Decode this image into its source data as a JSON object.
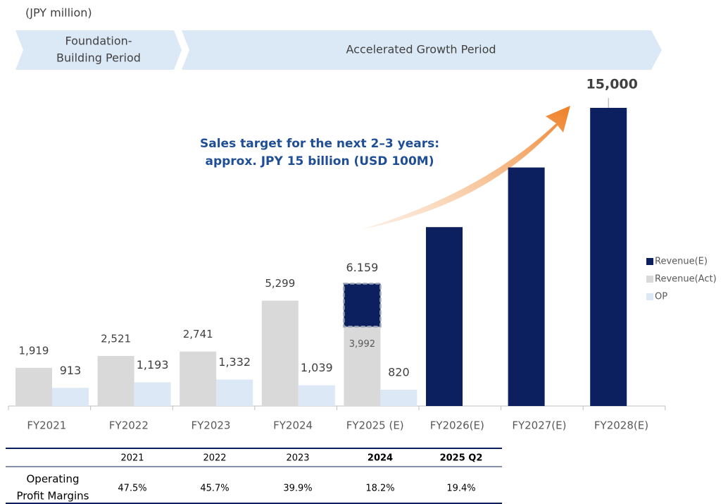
{
  "chart_data": {
    "type": "bar",
    "unit_label": "(JPY million)",
    "phases": [
      {
        "lines": [
          "Foundation-",
          "Building Period"
        ]
      },
      {
        "lines": [
          "Accelerated Growth Period"
        ]
      }
    ],
    "annotation": [
      "Sales target for the next 2–3 years:",
      "approx. JPY 15 billion (USD 100M)"
    ],
    "categories": [
      "FY2021",
      "FY2022",
      "FY2023",
      "FY2024",
      "FY2025 (E)",
      "FY2026(E)",
      "FY2027(E)",
      "FY2028(E)"
    ],
    "ylim": [
      0,
      15000
    ],
    "series": [
      {
        "name": "Revenue(E)",
        "color": "#0c1f5e",
        "values": [
          null,
          null,
          null,
          null,
          2167,
          9000,
          12000,
          15000
        ],
        "value_labels": [
          null,
          null,
          null,
          null,
          null,
          null,
          null,
          "15,000"
        ]
      },
      {
        "name": "Revenue(Act)",
        "color": "#d9d9d9",
        "values": [
          1919,
          2521,
          2741,
          5299,
          3992,
          null,
          null,
          null
        ],
        "value_labels": [
          "1,919",
          "2,521",
          "2,741",
          "5,299",
          "3,992",
          null,
          null,
          null
        ]
      },
      {
        "name": "OP",
        "color": "#dce8f5",
        "values": [
          913,
          1193,
          1332,
          1039,
          820,
          null,
          null,
          null
        ],
        "value_labels": [
          "913",
          "1,193",
          "1,332",
          "1,039",
          "820",
          null,
          null,
          null
        ]
      }
    ],
    "total_label": {
      "index": 4,
      "value": 6159,
      "label": "6.159"
    }
  },
  "table": {
    "columns": [
      "2021",
      "2022",
      "2023",
      "2024",
      "2025 Q2"
    ],
    "bold_columns": [
      3,
      4
    ],
    "row_label": [
      "Operating",
      "Profit Margins"
    ],
    "values": [
      "47.5%",
      "45.7%",
      "39.9%",
      "18.2%",
      "19.4%"
    ]
  }
}
